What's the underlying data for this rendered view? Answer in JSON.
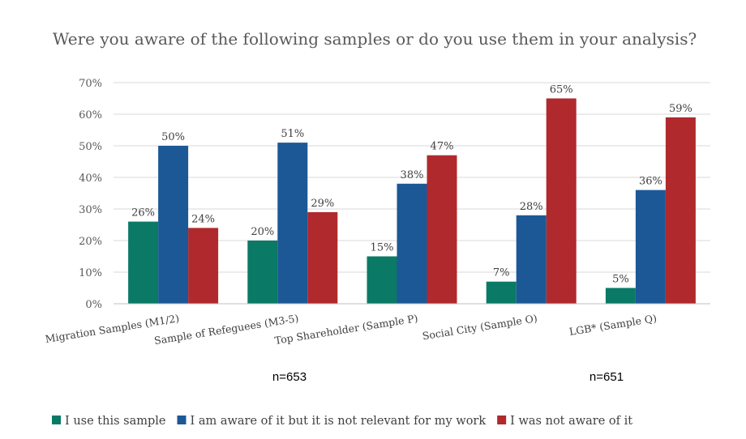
{
  "chart_data": {
    "type": "bar",
    "title": "Were you aware of the following samples or do you use them in your analysis?",
    "categories": [
      "Migration Samples (M1/2)",
      "Sample of Refeguees (M3-5)",
      "Top Shareholder (Sample P)",
      "Social City  (Sample O)",
      "LGB* (Sample Q)"
    ],
    "series": [
      {
        "name": "I use this sample",
        "color": "#0a7a66",
        "values": [
          26,
          20,
          15,
          7,
          5
        ]
      },
      {
        "name": "I am aware of it but it is not relevant for my work",
        "color": "#1c5896",
        "values": [
          50,
          51,
          38,
          28,
          36
        ]
      },
      {
        "name": "I was not aware of it",
        "color": "#b0292d",
        "values": [
          24,
          29,
          47,
          65,
          59
        ]
      }
    ],
    "ylim": [
      0,
      70
    ],
    "yticks": [
      0,
      10,
      20,
      30,
      40,
      50,
      60,
      70
    ],
    "value_format": "percent",
    "grid": true,
    "legend_position": "bottom",
    "notes": [
      "n=653",
      "n=651"
    ]
  }
}
